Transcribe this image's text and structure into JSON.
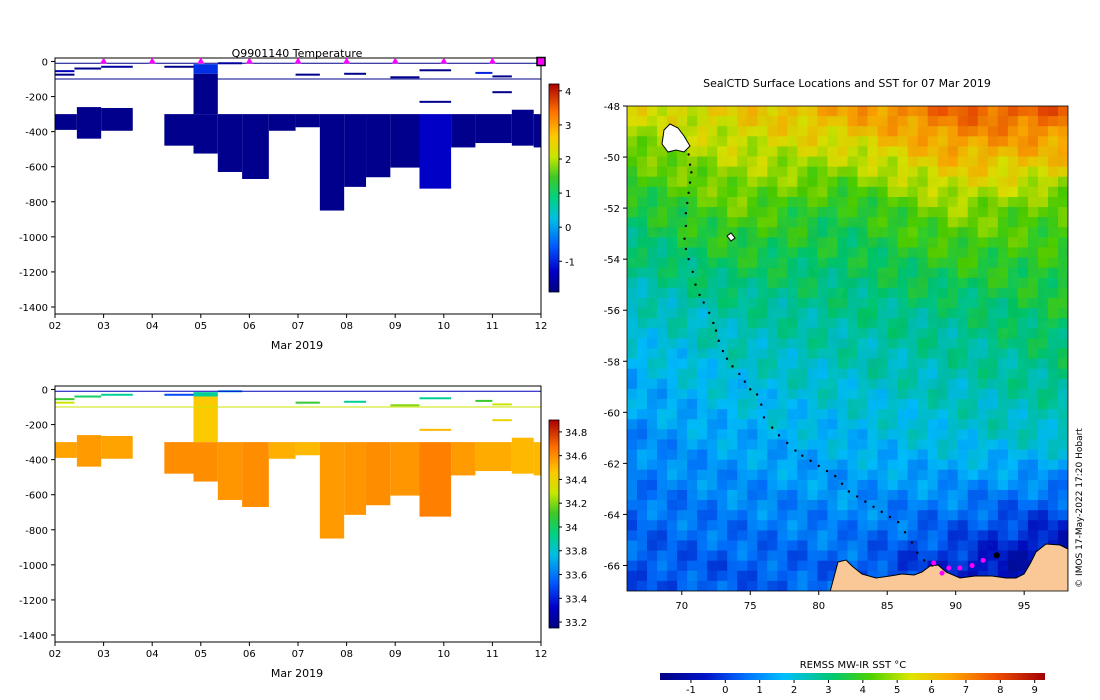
{
  "chart_data": [
    {
      "type": "heatmap",
      "title": "Q9901140  Temperature",
      "xlabel": "Mar 2019",
      "ylabel": "",
      "x_tick_labels": [
        "02",
        "03",
        "04",
        "05",
        "06",
        "07",
        "08",
        "09",
        "10",
        "11",
        "12"
      ],
      "x_range_days": [
        2,
        12
      ],
      "y_ticks": [
        0,
        -200,
        -400,
        -600,
        -800,
        -1000,
        -1200,
        -1400
      ],
      "ylim": [
        -1440,
        20
      ],
      "colorbar": {
        "ticks": [
          4,
          3,
          2,
          1,
          0,
          -1
        ],
        "range": [
          -1.9,
          4.2
        ]
      },
      "surface_markers_days": [
        3,
        4,
        5,
        6,
        7,
        8,
        9,
        10,
        11
      ],
      "end_marker_day": 12,
      "profiles": [
        {
          "x0": 2.0,
          "x1": 2.45,
          "top": -300,
          "bottom": -390,
          "value": -1.8
        },
        {
          "x0": 2.45,
          "x1": 2.95,
          "top": -260,
          "bottom": -440,
          "value": -1.8
        },
        {
          "x0": 2.95,
          "x1": 3.6,
          "top": -265,
          "bottom": -395,
          "value": -1.8
        },
        {
          "x0": 4.25,
          "x1": 4.85,
          "top": -300,
          "bottom": -480,
          "value": -1.8
        },
        {
          "x0": 4.85,
          "x1": 5.35,
          "top": -300,
          "bottom": -525,
          "value": -1.8
        },
        {
          "x0": 5.35,
          "x1": 5.85,
          "top": -300,
          "bottom": -630,
          "value": -1.8
        },
        {
          "x0": 5.85,
          "x1": 6.4,
          "top": -300,
          "bottom": -670,
          "value": -1.8
        },
        {
          "x0": 6.4,
          "x1": 6.95,
          "top": -300,
          "bottom": -395,
          "value": -1.8
        },
        {
          "x0": 6.95,
          "x1": 7.45,
          "top": -300,
          "bottom": -375,
          "value": -1.8
        },
        {
          "x0": 7.45,
          "x1": 7.95,
          "top": -300,
          "bottom": -850,
          "value": -1.8
        },
        {
          "x0": 7.95,
          "x1": 8.4,
          "top": -300,
          "bottom": -715,
          "value": -1.8
        },
        {
          "x0": 8.4,
          "x1": 8.9,
          "top": -300,
          "bottom": -660,
          "value": -1.8
        },
        {
          "x0": 8.9,
          "x1": 9.5,
          "top": -300,
          "bottom": -605,
          "value": -1.8
        },
        {
          "x0": 9.5,
          "x1": 10.15,
          "top": -300,
          "bottom": -725,
          "value": -1.3
        },
        {
          "x0": 10.15,
          "x1": 10.65,
          "top": -300,
          "bottom": -490,
          "value": -1.8
        },
        {
          "x0": 10.65,
          "x1": 11.4,
          "top": -300,
          "bottom": -465,
          "value": -1.8
        },
        {
          "x0": 11.4,
          "x1": 11.85,
          "top": -275,
          "bottom": -480,
          "value": -1.8
        },
        {
          "x0": 11.85,
          "x1": 12.05,
          "top": -300,
          "bottom": -490,
          "value": -1.8
        },
        {
          "x0": 4.85,
          "x1": 5.35,
          "top": -15,
          "bottom": -70,
          "value": -0.9
        },
        {
          "x0": 4.85,
          "x1": 5.35,
          "top": -70,
          "bottom": -300,
          "value": -1.8
        }
      ],
      "layers": [
        {
          "x0": 2.0,
          "x1": 2.4,
          "depth": -55,
          "value": -1.4
        },
        {
          "x0": 2.0,
          "x1": 2.4,
          "depth": -75,
          "value": -1.8
        },
        {
          "x0": 2.4,
          "x1": 2.95,
          "depth": -40,
          "value": -1.8
        },
        {
          "x0": 2.95,
          "x1": 3.6,
          "depth": -30,
          "value": -1.6
        },
        {
          "x0": 4.25,
          "x1": 4.85,
          "depth": -30,
          "value": -1.8
        },
        {
          "x0": 5.35,
          "x1": 5.85,
          "depth": -10,
          "value": -1.5
        },
        {
          "x0": 6.95,
          "x1": 7.45,
          "depth": -75,
          "value": -1.8
        },
        {
          "x0": 7.95,
          "x1": 8.4,
          "depth": -70,
          "value": -1.8
        },
        {
          "x0": 8.9,
          "x1": 9.5,
          "depth": -90,
          "value": -1.8
        },
        {
          "x0": 9.5,
          "x1": 10.15,
          "depth": -50,
          "value": -1.8
        },
        {
          "x0": 9.5,
          "x1": 10.15,
          "depth": -230,
          "value": -1.8
        },
        {
          "x0": 10.65,
          "x1": 11.0,
          "depth": -65,
          "value": -1.0
        },
        {
          "x0": 11.0,
          "x1": 11.4,
          "depth": -85,
          "value": -1.8
        },
        {
          "x0": 11.0,
          "x1": 11.4,
          "depth": -175,
          "value": -1.8
        }
      ],
      "lines": [
        {
          "depth": -10,
          "value": -1.8
        },
        {
          "depth": -100,
          "value": -1.8
        }
      ]
    },
    {
      "type": "heatmap",
      "title": "",
      "xlabel": "Mar 2019",
      "ylabel": "",
      "x_tick_labels": [
        "02",
        "03",
        "04",
        "05",
        "06",
        "07",
        "08",
        "09",
        "10",
        "11",
        "12"
      ],
      "x_range_days": [
        2,
        12
      ],
      "y_ticks": [
        0,
        -200,
        -400,
        -600,
        -800,
        -1000,
        -1200,
        -1400
      ],
      "ylim": [
        -1440,
        20
      ],
      "colorbar": {
        "ticks": [
          34.8,
          34.6,
          34.4,
          34.2,
          34,
          33.8,
          33.6,
          33.4,
          33.2
        ],
        "range": [
          33.15,
          34.9
        ]
      },
      "profiles": [
        {
          "x0": 2.0,
          "x1": 2.45,
          "top": -300,
          "bottom": -390,
          "value": 34.55
        },
        {
          "x0": 2.45,
          "x1": 2.95,
          "top": -260,
          "bottom": -440,
          "value": 34.57
        },
        {
          "x0": 2.95,
          "x1": 3.6,
          "top": -265,
          "bottom": -395,
          "value": 34.55
        },
        {
          "x0": 4.25,
          "x1": 4.85,
          "top": -300,
          "bottom": -480,
          "value": 34.6
        },
        {
          "x0": 4.85,
          "x1": 5.35,
          "top": -300,
          "bottom": -525,
          "value": 34.6
        },
        {
          "x0": 5.35,
          "x1": 5.85,
          "top": -300,
          "bottom": -630,
          "value": 34.58
        },
        {
          "x0": 5.85,
          "x1": 6.4,
          "top": -300,
          "bottom": -670,
          "value": 34.6
        },
        {
          "x0": 6.4,
          "x1": 6.95,
          "top": -300,
          "bottom": -395,
          "value": 34.52
        },
        {
          "x0": 6.95,
          "x1": 7.45,
          "top": -300,
          "bottom": -375,
          "value": 34.5
        },
        {
          "x0": 7.45,
          "x1": 7.95,
          "top": -300,
          "bottom": -850,
          "value": 34.57
        },
        {
          "x0": 7.95,
          "x1": 8.4,
          "top": -300,
          "bottom": -715,
          "value": 34.58
        },
        {
          "x0": 8.4,
          "x1": 8.9,
          "top": -300,
          "bottom": -660,
          "value": 34.6
        },
        {
          "x0": 8.9,
          "x1": 9.5,
          "top": -300,
          "bottom": -605,
          "value": 34.58
        },
        {
          "x0": 9.5,
          "x1": 10.15,
          "top": -300,
          "bottom": -725,
          "value": 34.63
        },
        {
          "x0": 10.15,
          "x1": 10.65,
          "top": -300,
          "bottom": -490,
          "value": 34.57
        },
        {
          "x0": 10.65,
          "x1": 11.4,
          "top": -300,
          "bottom": -465,
          "value": 34.53
        },
        {
          "x0": 11.4,
          "x1": 11.85,
          "top": -275,
          "bottom": -480,
          "value": 34.5
        },
        {
          "x0": 11.85,
          "x1": 12.05,
          "top": -300,
          "bottom": -490,
          "value": 34.5
        },
        {
          "x0": 4.85,
          "x1": 5.35,
          "top": -15,
          "bottom": -40,
          "value": 33.9
        },
        {
          "x0": 4.85,
          "x1": 5.35,
          "top": -40,
          "bottom": -300,
          "value": 34.45
        }
      ],
      "layers": [
        {
          "x0": 2.0,
          "x1": 2.4,
          "depth": -55,
          "value": 34.1
        },
        {
          "x0": 2.0,
          "x1": 2.4,
          "depth": -75,
          "value": 34.3
        },
        {
          "x0": 2.4,
          "x1": 2.95,
          "depth": -40,
          "value": 34.0
        },
        {
          "x0": 2.95,
          "x1": 3.6,
          "depth": -30,
          "value": 33.9
        },
        {
          "x0": 4.25,
          "x1": 4.85,
          "depth": -30,
          "value": 33.5
        },
        {
          "x0": 5.35,
          "x1": 5.85,
          "depth": -10,
          "value": 33.7
        },
        {
          "x0": 6.95,
          "x1": 7.45,
          "depth": -75,
          "value": 34.1
        },
        {
          "x0": 7.95,
          "x1": 8.4,
          "depth": -70,
          "value": 33.9
        },
        {
          "x0": 8.9,
          "x1": 9.5,
          "depth": -90,
          "value": 34.2
        },
        {
          "x0": 9.5,
          "x1": 10.15,
          "depth": -50,
          "value": 33.9
        },
        {
          "x0": 9.5,
          "x1": 10.15,
          "depth": -230,
          "value": 34.5
        },
        {
          "x0": 10.65,
          "x1": 11.0,
          "depth": -65,
          "value": 34.1
        },
        {
          "x0": 11.0,
          "x1": 11.4,
          "depth": -85,
          "value": 34.3
        },
        {
          "x0": 11.0,
          "x1": 11.4,
          "depth": -175,
          "value": 34.4
        }
      ],
      "lines": [
        {
          "depth": -10,
          "value": 33.3
        },
        {
          "depth": -100,
          "value": 34.3
        }
      ]
    },
    {
      "type": "heatmap",
      "title": "SealCTD Surface Locations and SST for 07 Mar 2019",
      "xlabel": "",
      "ylabel": "",
      "x_ticks": [
        70,
        75,
        80,
        85,
        90,
        95
      ],
      "xlim": [
        66.0,
        98.2
      ],
      "y_ticks": [
        -48,
        -50,
        -52,
        -54,
        -56,
        -58,
        -60,
        -62,
        -64,
        -66
      ],
      "ylim": [
        -67.0,
        -48.0
      ],
      "colorbar": {
        "label": "REMSS MW-IR SST °C",
        "ticks": [
          -1,
          0,
          1,
          2,
          3,
          4,
          5,
          6,
          7,
          8,
          9
        ],
        "range": [
          -1.9,
          9.3
        ]
      },
      "sst_field": {
        "n_lat": 5,
        "n_lon": 5,
        "lats": [
          -48,
          -52,
          -56,
          -61,
          -66
        ],
        "lons": [
          66,
          74,
          82,
          90,
          98
        ],
        "values": [
          [
            5.4,
            5.8,
            6.6,
            7.6,
            7.8
          ],
          [
            3.4,
            4.4,
            3.6,
            4.8,
            4.2
          ],
          [
            2.2,
            2.6,
            2.8,
            2.9,
            3.5
          ],
          [
            1.0,
            1.5,
            1.7,
            2.0,
            2.2
          ],
          [
            0.3,
            0.4,
            0.5,
            -0.3,
            -1.4
          ]
        ]
      },
      "track": [
        [
          70.5,
          -49.9
        ],
        [
          70.6,
          -50.3
        ],
        [
          70.7,
          -50.6
        ],
        [
          70.6,
          -51.0
        ],
        [
          70.5,
          -51.4
        ],
        [
          70.4,
          -51.8
        ],
        [
          70.3,
          -52.2
        ],
        [
          70.3,
          -52.7
        ],
        [
          70.2,
          -53.2
        ],
        [
          70.3,
          -53.6
        ],
        [
          70.5,
          -54.0
        ],
        [
          70.8,
          -54.5
        ],
        [
          71.0,
          -55.0
        ],
        [
          71.3,
          -55.4
        ],
        [
          71.6,
          -55.7
        ],
        [
          72.0,
          -56.1
        ],
        [
          72.3,
          -56.5
        ],
        [
          72.5,
          -56.8
        ],
        [
          72.7,
          -57.2
        ],
        [
          73.0,
          -57.6
        ],
        [
          73.3,
          -57.9
        ],
        [
          73.7,
          -58.2
        ],
        [
          74.2,
          -58.5
        ],
        [
          74.6,
          -58.8
        ],
        [
          75.0,
          -59.1
        ],
        [
          75.5,
          -59.3
        ],
        [
          75.8,
          -59.7
        ],
        [
          76.0,
          -60.2
        ],
        [
          76.6,
          -60.6
        ],
        [
          77.1,
          -60.9
        ],
        [
          77.7,
          -61.2
        ],
        [
          78.3,
          -61.5
        ],
        [
          78.8,
          -61.7
        ],
        [
          79.4,
          -61.9
        ],
        [
          80.0,
          -62.1
        ],
        [
          80.6,
          -62.3
        ],
        [
          81.2,
          -62.5
        ],
        [
          81.7,
          -62.8
        ],
        [
          82.2,
          -63.1
        ],
        [
          82.8,
          -63.3
        ],
        [
          83.4,
          -63.5
        ],
        [
          84.0,
          -63.7
        ],
        [
          84.6,
          -63.9
        ],
        [
          85.2,
          -64.1
        ],
        [
          85.8,
          -64.3
        ],
        [
          86.3,
          -64.7
        ],
        [
          86.8,
          -65.1
        ],
        [
          87.2,
          -65.5
        ],
        [
          87.7,
          -65.8
        ],
        [
          88.3,
          -66.0
        ]
      ],
      "magenta_points": [
        [
          88.4,
          -65.9
        ],
        [
          89.5,
          -66.1
        ],
        [
          90.3,
          -66.1
        ],
        [
          91.2,
          -66.0
        ],
        [
          92.0,
          -65.8
        ],
        [
          89.0,
          -66.3
        ]
      ],
      "start_marker": [
        93.0,
        -65.6
      ],
      "copyright": "© IMOS 17-May-2022 17:20 Hobart"
    }
  ]
}
